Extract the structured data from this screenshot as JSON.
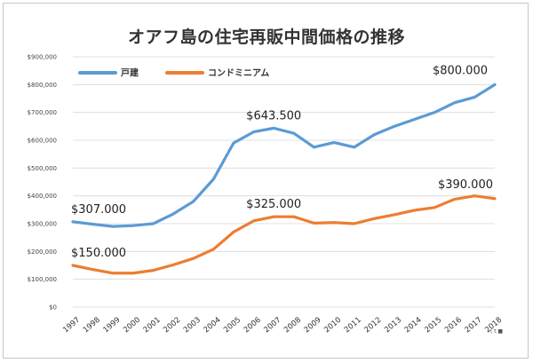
{
  "chart_data": {
    "type": "line",
    "title": "オアフ島の住宅再販中間価格の推移",
    "xlabel": "",
    "ylabel": "",
    "ylim": [
      0,
      900000
    ],
    "yticks": [
      0,
      100000,
      200000,
      300000,
      400000,
      500000,
      600000,
      700000,
      800000,
      900000
    ],
    "ytick_labels": [
      "$0",
      "$100,000",
      "$200,000",
      "$300,000",
      "$400,000",
      "$500,000",
      "$600,000",
      "$700,000",
      "$800,000",
      "$900,000"
    ],
    "categories": [
      "1997",
      "1998",
      "1999",
      "2000",
      "2001",
      "2002",
      "2003",
      "2004",
      "2005",
      "2006",
      "2007",
      "2008",
      "2009",
      "2010",
      "2011",
      "2012",
      "2013",
      "2014",
      "2015",
      "2016",
      "2017",
      "2018"
    ],
    "grid": true,
    "legend_position": "top-left",
    "series": [
      {
        "name": "戸建",
        "color": "#5b9bd5",
        "values": [
          307000,
          298000,
          290000,
          293000,
          300000,
          335000,
          380000,
          460000,
          590000,
          630000,
          643500,
          625000,
          575000,
          592000,
          575000,
          620000,
          650000,
          675000,
          700000,
          735000,
          755000,
          800000
        ]
      },
      {
        "name": "コンドミニアム",
        "color": "#ed7d31",
        "values": [
          150000,
          135000,
          122000,
          122000,
          132000,
          152000,
          175000,
          208000,
          270000,
          310000,
          325000,
          325000,
          302000,
          304000,
          300000,
          318000,
          332000,
          348000,
          358000,
          388000,
          400000,
          390000
        ]
      }
    ],
    "annotations": [
      {
        "text": "$307.000",
        "series": 0,
        "x": "1997"
      },
      {
        "text": "$643.500",
        "series": 0,
        "x": "2007"
      },
      {
        "text": "$800.000",
        "series": 0,
        "x": "2018"
      },
      {
        "text": "$150.000",
        "series": 1,
        "x": "1997"
      },
      {
        "text": "$325.000",
        "series": 1,
        "x": "2007"
      },
      {
        "text": "$390.000",
        "series": 1,
        "x": "2018"
      }
    ],
    "note": "(ｔ■"
  }
}
